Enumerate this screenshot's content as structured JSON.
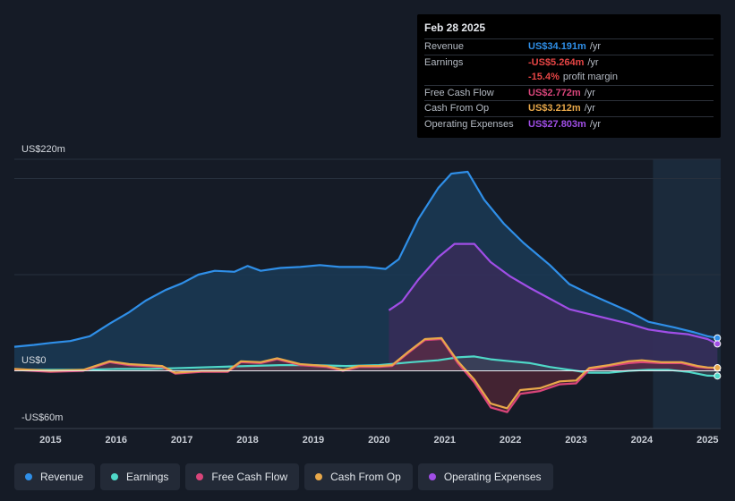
{
  "tooltip": {
    "date": "Feb 28 2025",
    "rows": [
      {
        "label": "Revenue",
        "value": "US$34.191m",
        "unit": "/yr",
        "color": "#2f8fe8"
      },
      {
        "label": "Earnings",
        "value": "-US$5.264m",
        "unit": "/yr",
        "color": "#e64545"
      },
      {
        "label": "",
        "value": "-15.4%",
        "unit": "profit margin",
        "color": "#e64545"
      },
      {
        "label": "Free Cash Flow",
        "value": "US$2.772m",
        "unit": "/yr",
        "color": "#d9457a"
      },
      {
        "label": "Cash From Op",
        "value": "US$3.212m",
        "unit": "/yr",
        "color": "#e8a84a"
      },
      {
        "label": "Operating Expenses",
        "value": "US$27.803m",
        "unit": "/yr",
        "color": "#a04ee6"
      }
    ]
  },
  "legend": [
    {
      "label": "Revenue",
      "color": "#2f8fe8"
    },
    {
      "label": "Earnings",
      "color": "#4fd8c8"
    },
    {
      "label": "Free Cash Flow",
      "color": "#d9457a"
    },
    {
      "label": "Cash From Op",
      "color": "#e8a84a"
    },
    {
      "label": "Operating Expenses",
      "color": "#a04ee6"
    }
  ],
  "chart_data": {
    "type": "area",
    "title": "",
    "xlabel": "",
    "ylabel": "",
    "y_labels": {
      "top": "US$220m",
      "zero": "US$0",
      "bottom": "-US$60m"
    },
    "ylim": [
      -60,
      220
    ],
    "xlim": [
      2014.45,
      2025.2
    ],
    "x_ticks": [
      {
        "value": 2015,
        "label": "2015"
      },
      {
        "value": 2016,
        "label": "2016"
      },
      {
        "value": 2017,
        "label": "2017"
      },
      {
        "value": 2018,
        "label": "2018"
      },
      {
        "value": 2019,
        "label": "2019"
      },
      {
        "value": 2020,
        "label": "2020"
      },
      {
        "value": 2021,
        "label": "2021"
      },
      {
        "value": 2022,
        "label": "2022"
      },
      {
        "value": 2023,
        "label": "2023"
      },
      {
        "value": 2024,
        "label": "2024"
      },
      {
        "value": 2025,
        "label": "2025"
      }
    ],
    "forecast_start": 2024.17,
    "series": [
      {
        "name": "Revenue",
        "color": "#2f8fe8",
        "points": [
          [
            2014.45,
            25
          ],
          [
            2014.75,
            27
          ],
          [
            2015.0,
            29
          ],
          [
            2015.3,
            31
          ],
          [
            2015.6,
            36
          ],
          [
            2015.9,
            49
          ],
          [
            2016.2,
            61
          ],
          [
            2016.45,
            73
          ],
          [
            2016.75,
            84
          ],
          [
            2017.0,
            91
          ],
          [
            2017.25,
            100
          ],
          [
            2017.5,
            104
          ],
          [
            2017.8,
            103
          ],
          [
            2018.0,
            109
          ],
          [
            2018.2,
            104
          ],
          [
            2018.5,
            107
          ],
          [
            2018.8,
            108
          ],
          [
            2019.1,
            110
          ],
          [
            2019.4,
            108
          ],
          [
            2019.8,
            108
          ],
          [
            2020.1,
            106
          ],
          [
            2020.3,
            116
          ],
          [
            2020.6,
            158
          ],
          [
            2020.9,
            190
          ],
          [
            2021.1,
            205
          ],
          [
            2021.35,
            207
          ],
          [
            2021.6,
            178
          ],
          [
            2021.9,
            153
          ],
          [
            2022.2,
            133
          ],
          [
            2022.6,
            110
          ],
          [
            2022.9,
            90
          ],
          [
            2023.2,
            80
          ],
          [
            2023.5,
            71
          ],
          [
            2023.8,
            62
          ],
          [
            2024.1,
            51
          ],
          [
            2024.5,
            45
          ],
          [
            2024.8,
            40
          ],
          [
            2025.0,
            36
          ],
          [
            2025.15,
            34.2
          ]
        ]
      },
      {
        "name": "Operating Expenses",
        "color": "#a04ee6",
        "points": [
          [
            2020.15,
            63
          ],
          [
            2020.35,
            72
          ],
          [
            2020.6,
            95
          ],
          [
            2020.9,
            118
          ],
          [
            2021.15,
            132
          ],
          [
            2021.45,
            132
          ],
          [
            2021.7,
            113
          ],
          [
            2022.0,
            98
          ],
          [
            2022.3,
            86
          ],
          [
            2022.6,
            75
          ],
          [
            2022.9,
            64
          ],
          [
            2023.2,
            59
          ],
          [
            2023.5,
            54
          ],
          [
            2023.8,
            49
          ],
          [
            2024.1,
            43
          ],
          [
            2024.4,
            40
          ],
          [
            2024.7,
            38
          ],
          [
            2025.0,
            33
          ],
          [
            2025.15,
            28
          ]
        ]
      },
      {
        "name": "Earnings",
        "color": "#4fd8c8",
        "points": [
          [
            2014.45,
            1
          ],
          [
            2015.0,
            1
          ],
          [
            2015.5,
            1
          ],
          [
            2016.0,
            2
          ],
          [
            2016.5,
            2
          ],
          [
            2017.0,
            3
          ],
          [
            2017.5,
            4
          ],
          [
            2018.0,
            5
          ],
          [
            2018.5,
            6
          ],
          [
            2019.0,
            6
          ],
          [
            2019.5,
            5
          ],
          [
            2020.0,
            6
          ],
          [
            2020.5,
            9
          ],
          [
            2020.9,
            11
          ],
          [
            2021.2,
            14
          ],
          [
            2021.45,
            15
          ],
          [
            2021.7,
            12
          ],
          [
            2022.0,
            10
          ],
          [
            2022.3,
            8
          ],
          [
            2022.6,
            4
          ],
          [
            2022.9,
            1
          ],
          [
            2023.2,
            -2
          ],
          [
            2023.5,
            -2
          ],
          [
            2023.8,
            0
          ],
          [
            2024.1,
            1
          ],
          [
            2024.4,
            1
          ],
          [
            2024.7,
            -1
          ],
          [
            2025.0,
            -5
          ],
          [
            2025.15,
            -5.3
          ]
        ]
      },
      {
        "name": "Free Cash Flow",
        "color": "#d9457a",
        "points": [
          [
            2014.45,
            1
          ],
          [
            2015.0,
            -1
          ],
          [
            2015.5,
            0
          ],
          [
            2015.9,
            9
          ],
          [
            2016.2,
            6
          ],
          [
            2016.7,
            4
          ],
          [
            2016.9,
            -3
          ],
          [
            2017.3,
            -1
          ],
          [
            2017.7,
            -1
          ],
          [
            2017.9,
            9
          ],
          [
            2018.2,
            8
          ],
          [
            2018.45,
            12
          ],
          [
            2018.8,
            6
          ],
          [
            2019.2,
            4
          ],
          [
            2019.45,
            0
          ],
          [
            2019.7,
            4
          ],
          [
            2020.0,
            4
          ],
          [
            2020.2,
            5
          ],
          [
            2020.45,
            19
          ],
          [
            2020.7,
            32
          ],
          [
            2020.95,
            33
          ],
          [
            2021.2,
            8
          ],
          [
            2021.45,
            -12
          ],
          [
            2021.7,
            -38
          ],
          [
            2021.95,
            -43
          ],
          [
            2022.15,
            -24
          ],
          [
            2022.45,
            -21
          ],
          [
            2022.75,
            -14
          ],
          [
            2023.0,
            -13
          ],
          [
            2023.2,
            1
          ],
          [
            2023.5,
            5
          ],
          [
            2023.8,
            8
          ],
          [
            2024.0,
            9
          ],
          [
            2024.3,
            8
          ],
          [
            2024.6,
            8
          ],
          [
            2024.85,
            4
          ],
          [
            2025.0,
            3
          ],
          [
            2025.15,
            2.8
          ]
        ]
      },
      {
        "name": "Cash From Op",
        "color": "#e8a84a",
        "points": [
          [
            2014.45,
            2
          ],
          [
            2015.0,
            0
          ],
          [
            2015.5,
            1
          ],
          [
            2015.9,
            10
          ],
          [
            2016.2,
            7
          ],
          [
            2016.7,
            5
          ],
          [
            2016.9,
            -2
          ],
          [
            2017.3,
            0
          ],
          [
            2017.7,
            0
          ],
          [
            2017.9,
            10
          ],
          [
            2018.2,
            9
          ],
          [
            2018.45,
            13
          ],
          [
            2018.8,
            7
          ],
          [
            2019.2,
            5
          ],
          [
            2019.45,
            1
          ],
          [
            2019.7,
            5
          ],
          [
            2020.0,
            5
          ],
          [
            2020.2,
            6
          ],
          [
            2020.45,
            20
          ],
          [
            2020.7,
            33
          ],
          [
            2020.95,
            34
          ],
          [
            2021.2,
            10
          ],
          [
            2021.45,
            -9
          ],
          [
            2021.7,
            -34
          ],
          [
            2021.95,
            -39
          ],
          [
            2022.15,
            -20
          ],
          [
            2022.45,
            -18
          ],
          [
            2022.75,
            -11
          ],
          [
            2023.0,
            -10
          ],
          [
            2023.2,
            3
          ],
          [
            2023.5,
            6
          ],
          [
            2023.8,
            10
          ],
          [
            2024.0,
            11
          ],
          [
            2024.3,
            9
          ],
          [
            2024.6,
            9
          ],
          [
            2024.85,
            5
          ],
          [
            2025.0,
            3.5
          ],
          [
            2025.15,
            3.2
          ]
        ]
      }
    ]
  }
}
